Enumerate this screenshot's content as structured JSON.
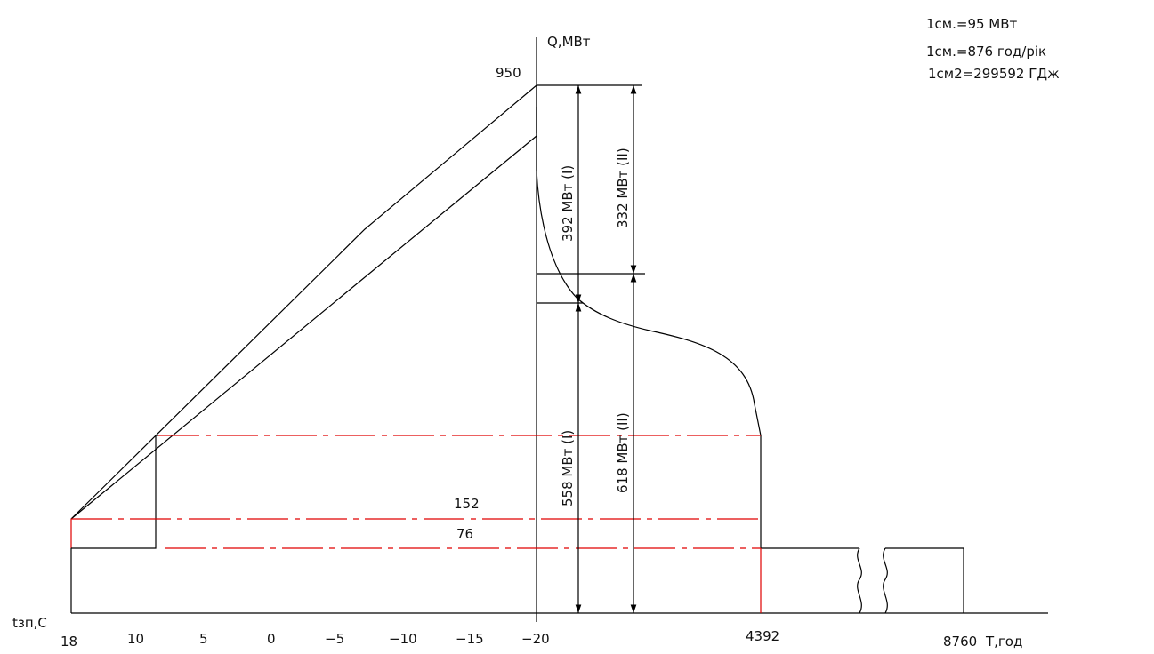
{
  "diagram": {
    "axis_labels": {
      "q_axis": "Q,МВт",
      "temp_axis": "tзп,С",
      "time_axis": "T,год"
    },
    "temp_ticks": [
      "18",
      "10",
      "5",
      "0",
      "−5",
      "−10",
      "−15",
      "−20"
    ],
    "time_ticks": [
      "4392",
      "8760"
    ],
    "q_values": {
      "max": "950",
      "mid": "152",
      "low": "76"
    },
    "dimensions": {
      "d1": "392 МВт (I)",
      "d2": "332 МВт (II)",
      "d3": "558 МВт (I)",
      "d4": "618 МВт (II)"
    },
    "scale_notes": [
      "1см.=95 МВт",
      "1см.=876 год/рік",
      "1см2=299592 ГДж"
    ],
    "colors": {
      "line": "#000000",
      "accent": "#e00000"
    }
  }
}
